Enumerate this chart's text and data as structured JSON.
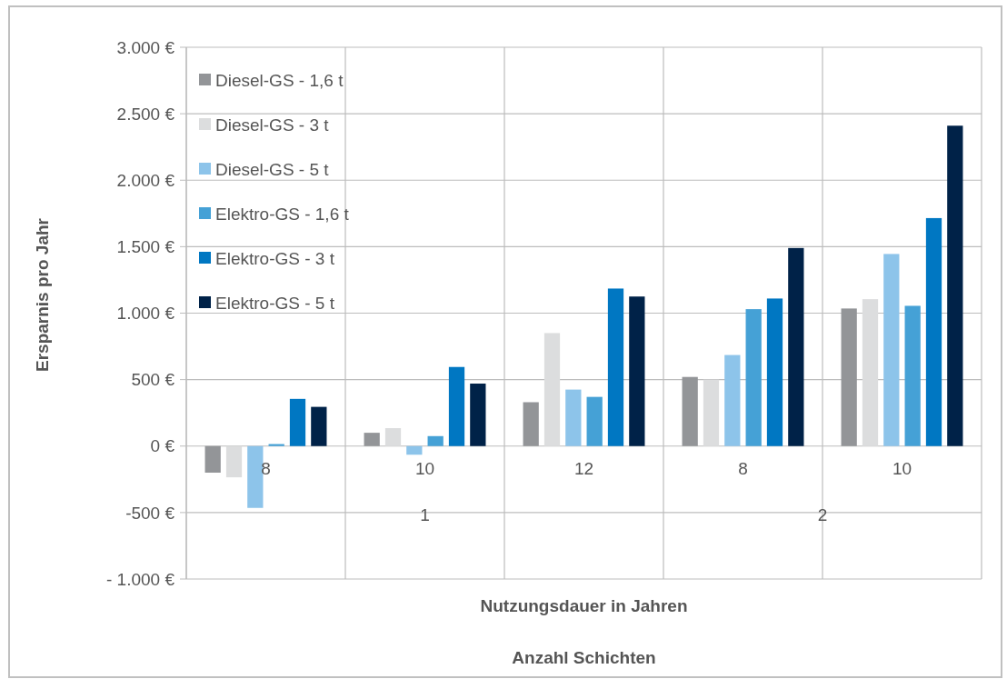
{
  "chart_data": {
    "type": "bar",
    "xlabel": "Nutzungsdauer in Jahren",
    "ylabel": "Ersparnis pro Jahr",
    "categories": [
      "8",
      "10",
      "12",
      "8",
      "10"
    ],
    "annotations": [
      "1",
      "2",
      "Anzahl Schichten"
    ],
    "series": [
      {
        "name": "Diesel-GS - 1,6 t",
        "color": "#939598",
        "values": [
          -200,
          100,
          330,
          520,
          1035
        ]
      },
      {
        "name": "Diesel-GS - 3 t",
        "color": "#dcddde",
        "values": [
          -235,
          135,
          850,
          500,
          1105
        ]
      },
      {
        "name": "Diesel-GS - 5 t",
        "color": "#8dc4ea",
        "values": [
          -465,
          -65,
          425,
          685,
          1445
        ]
      },
      {
        "name": "Elektro-GS - 1,6 t",
        "color": "#45a1d6",
        "values": [
          15,
          75,
          370,
          1030,
          1055
        ]
      },
      {
        "name": "Elektro-GS - 3 t",
        "color": "#0077c2",
        "values": [
          355,
          595,
          1185,
          1110,
          1715
        ]
      },
      {
        "name": "Elektro-GS - 5 t",
        "color": "#002248",
        "values": [
          295,
          470,
          1125,
          1490,
          2410
        ]
      }
    ],
    "ylim": [
      -1000,
      3000
    ],
    "yticks": [
      {
        "value": -1000,
        "label": "- 1.000 €"
      },
      {
        "value": -500,
        "label": "-500 €"
      },
      {
        "value": 0,
        "label": "0 €"
      },
      {
        "value": 500,
        "label": "500 €"
      },
      {
        "value": 1000,
        "label": "1.000 €"
      },
      {
        "value": 1500,
        "label": "1.500 €"
      },
      {
        "value": 2000,
        "label": "2.000 €"
      },
      {
        "value": 2500,
        "label": "2.500 €"
      },
      {
        "value": 3000,
        "label": "3.000 €"
      }
    ],
    "grid": true,
    "legend": "top left"
  }
}
